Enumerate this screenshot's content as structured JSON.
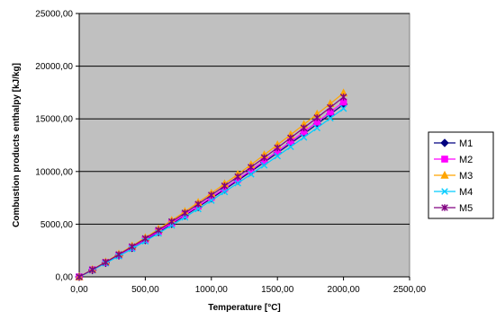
{
  "chart_data": {
    "type": "line",
    "title": "",
    "xlabel": "Temperature [°C]",
    "ylabel": "Combustion products enthalpy [kJ/kg]",
    "xlim": [
      0,
      2500
    ],
    "ylim": [
      0,
      25000
    ],
    "x_ticks": [
      "0,00",
      "500,00",
      "1000,00",
      "1500,00",
      "2000,00",
      "2500,00"
    ],
    "y_ticks": [
      "0,00",
      "5000,00",
      "10000,00",
      "15000,00",
      "20000,00",
      "25000,00"
    ],
    "grid": "horizontal",
    "plot_background": "#C0C0C0",
    "legend_position": "right",
    "x": [
      0,
      100,
      200,
      300,
      400,
      500,
      600,
      700,
      800,
      900,
      1000,
      1100,
      1200,
      1300,
      1400,
      1500,
      1600,
      1700,
      1800,
      1900,
      2000
    ],
    "series": [
      {
        "name": "M1",
        "color": "#000080",
        "marker": "diamond",
        "values": [
          0,
          650,
          1330,
          2030,
          2750,
          3490,
          4250,
          5030,
          5820,
          6630,
          7450,
          8290,
          9140,
          10000,
          10880,
          11770,
          12670,
          13580,
          14500,
          15440,
          16380
        ]
      },
      {
        "name": "M2",
        "color": "#FF00FF",
        "marker": "square",
        "values": [
          0,
          660,
          1350,
          2060,
          2790,
          3540,
          4310,
          5100,
          5900,
          6720,
          7550,
          8400,
          9260,
          10130,
          11020,
          11920,
          12830,
          13760,
          14690,
          15640,
          16590
        ]
      },
      {
        "name": "M3",
        "color": "#FFA500",
        "marker": "triangle",
        "values": [
          0,
          700,
          1420,
          2170,
          2930,
          3720,
          4530,
          5360,
          6200,
          7060,
          7940,
          8830,
          9730,
          10650,
          11580,
          12530,
          13490,
          14460,
          15450,
          16440,
          17450
        ]
      },
      {
        "name": "M4",
        "color": "#00CCFF",
        "marker": "x",
        "values": [
          0,
          630,
          1290,
          1970,
          2670,
          3390,
          4130,
          4890,
          5660,
          6450,
          7250,
          8070,
          8900,
          9740,
          10600,
          11470,
          12350,
          13240,
          14140,
          15060,
          15980
        ]
      },
      {
        "name": "M5",
        "color": "#800080",
        "marker": "star",
        "values": [
          0,
          680,
          1390,
          2120,
          2870,
          3640,
          4430,
          5240,
          6060,
          6900,
          7760,
          8630,
          9510,
          10410,
          11320,
          12250,
          13190,
          14140,
          15110,
          16080,
          17070
        ]
      }
    ]
  }
}
